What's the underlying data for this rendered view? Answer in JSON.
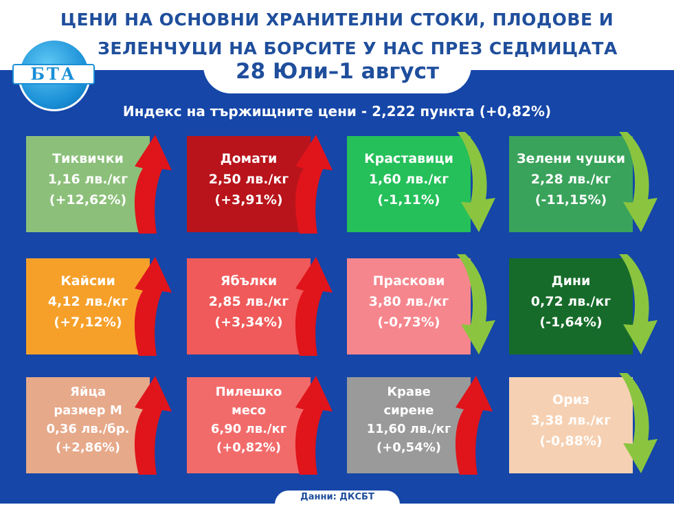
{
  "header": {
    "title_line1": "ЦЕНИ НА ОСНОВНИ ХРАНИТЕЛНИ СТОКИ, ПЛОДОВЕ И",
    "title_line2": "ЗЕЛЕНЧУЦИ НА БОРСИТЕ У НАС ПРЕЗ СЕДМИЦАТА",
    "date": "28 Юли–1 август",
    "logo_text": "БТА"
  },
  "index_text": "Индекс на тържищните цени - 2,222 пункта (+0,82%)",
  "items": [
    {
      "name": "Тиквички",
      "price": "1,16 лв./кг",
      "change": "(+12,62%)",
      "trend": "up",
      "color": "#8cc07a"
    },
    {
      "name": "Домати",
      "price": "2,50 лв./кг",
      "change": "(+3,91%)",
      "trend": "up",
      "color": "#b9141b"
    },
    {
      "name": "Краставици",
      "price": "1,60 лв./кг",
      "change": "(-1,11%)",
      "trend": "down",
      "color": "#25c05a"
    },
    {
      "name": "Зелени чушки",
      "price": "2,28 лв./кг",
      "change": "(-11,15%)",
      "trend": "down",
      "color": "#3aa35b"
    },
    {
      "name": "Кайсии",
      "price": "4,12 лв./кг",
      "change": "(+7,12%)",
      "trend": "up",
      "color": "#f6a02a"
    },
    {
      "name": "Ябълки",
      "price": "2,85 лв./кг",
      "change": "(+3,34%)",
      "trend": "up",
      "color": "#f05a5a"
    },
    {
      "name": "Праскови",
      "price": "3,80 лв./кг",
      "change": "(-0,73%)",
      "trend": "down",
      "color": "#f6868d"
    },
    {
      "name": "Дини",
      "price": "0,72 лв./кг",
      "change": "(-1,64%)",
      "trend": "down",
      "color": "#176b2a"
    },
    {
      "name": "Яйца",
      "name2": "размер M",
      "price": "0,36 лв./бр.",
      "change": "(+2,86%)",
      "trend": "up",
      "color": "#e6a98a"
    },
    {
      "name": "Пилешко",
      "name2": "месо",
      "price": "6,90 лв./кг",
      "change": "(+0,82%)",
      "trend": "up",
      "color": "#f26b6b"
    },
    {
      "name": "Краве",
      "name2": "сирене",
      "price": "11,60 лв./кг",
      "change": "(+0,54%)",
      "trend": "up",
      "color": "#9a9a9a"
    },
    {
      "name": "Ориз",
      "price": "3,38 лв./кг",
      "change": "(-0,88%)",
      "trend": "down",
      "color": "#f6d0b2"
    }
  ],
  "colors": {
    "up_arrow": "#e0141b",
    "down_arrow": "#8bc53f",
    "background": "#1546a8",
    "title": "#1f4e9c"
  },
  "footer": "Данни: ДКСБТ"
}
